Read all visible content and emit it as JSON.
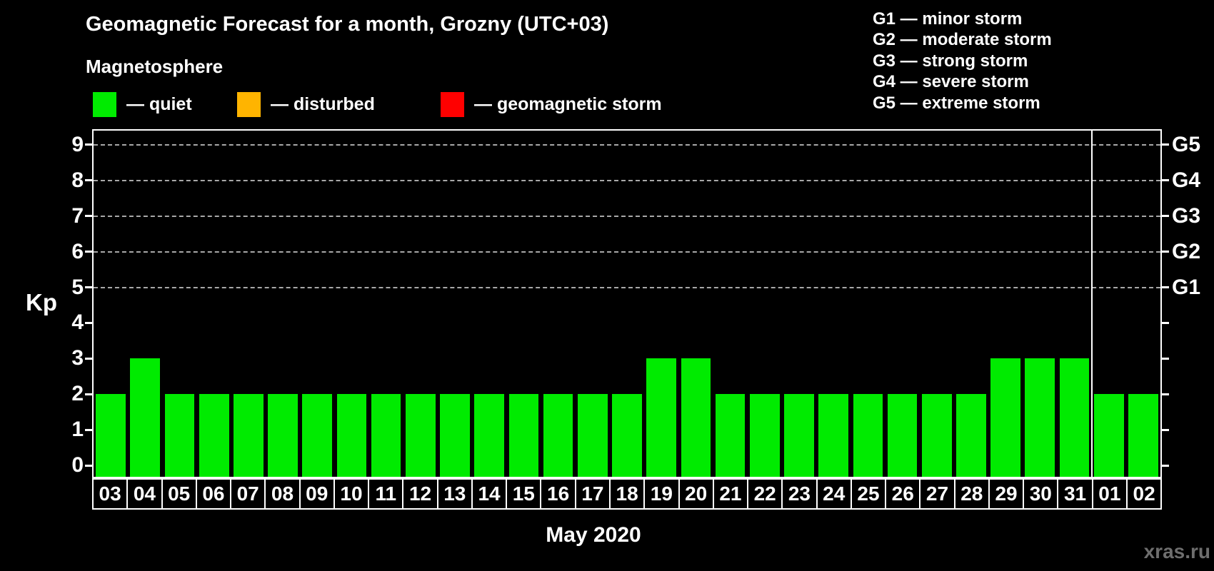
{
  "header": {
    "title": "Geomagnetic Forecast for a month, Grozny (UTC+03)",
    "subtitle": "Magnetosphere",
    "legend": [
      {
        "id": "quiet",
        "label": "— quiet",
        "color": "#00eb00"
      },
      {
        "id": "disturbed",
        "label": "— disturbed",
        "color": "#ffb400"
      },
      {
        "id": "storm",
        "label": "— geomagnetic storm",
        "color": "#ff0000"
      }
    ],
    "storm_scale": [
      "G1 — minor storm",
      "G2 — moderate storm",
      "G3 — strong storm",
      "G4 — severe storm",
      "G5 — extreme storm"
    ]
  },
  "chart_data": {
    "type": "bar",
    "title": "Geomagnetic Forecast for a month, Grozny (UTC+03)",
    "xlabel": "May 2020",
    "ylabel": "Kp",
    "ylim": [
      -0.32,
      9.4
    ],
    "yticks": [
      0,
      1,
      2,
      3,
      4,
      5,
      6,
      7,
      8,
      9
    ],
    "gridlines_at": [
      5,
      6,
      7,
      8,
      9
    ],
    "grid": "dashed horizontal lines at G storm levels only",
    "legend_position": "top-left",
    "right_axis": [
      {
        "label": "G1",
        "kp": 5
      },
      {
        "label": "G2",
        "kp": 6
      },
      {
        "label": "G3",
        "kp": 7
      },
      {
        "label": "G4",
        "kp": 8
      },
      {
        "label": "G5",
        "kp": 9
      }
    ],
    "categories": [
      "03",
      "04",
      "05",
      "06",
      "07",
      "08",
      "09",
      "10",
      "11",
      "12",
      "13",
      "14",
      "15",
      "16",
      "17",
      "18",
      "19",
      "20",
      "21",
      "22",
      "23",
      "24",
      "25",
      "26",
      "27",
      "28",
      "29",
      "30",
      "31",
      "01",
      "02"
    ],
    "values": [
      2,
      3,
      2,
      2,
      2,
      2,
      2,
      2,
      2,
      2,
      2,
      2,
      2,
      2,
      2,
      2,
      3,
      3,
      2,
      2,
      2,
      2,
      2,
      2,
      2,
      2,
      3,
      3,
      3,
      2,
      2
    ],
    "bar_color": "#00eb00",
    "month_separator_after": "31"
  },
  "footer": {
    "month_label": "May 2020",
    "watermark": "xras.ru"
  }
}
